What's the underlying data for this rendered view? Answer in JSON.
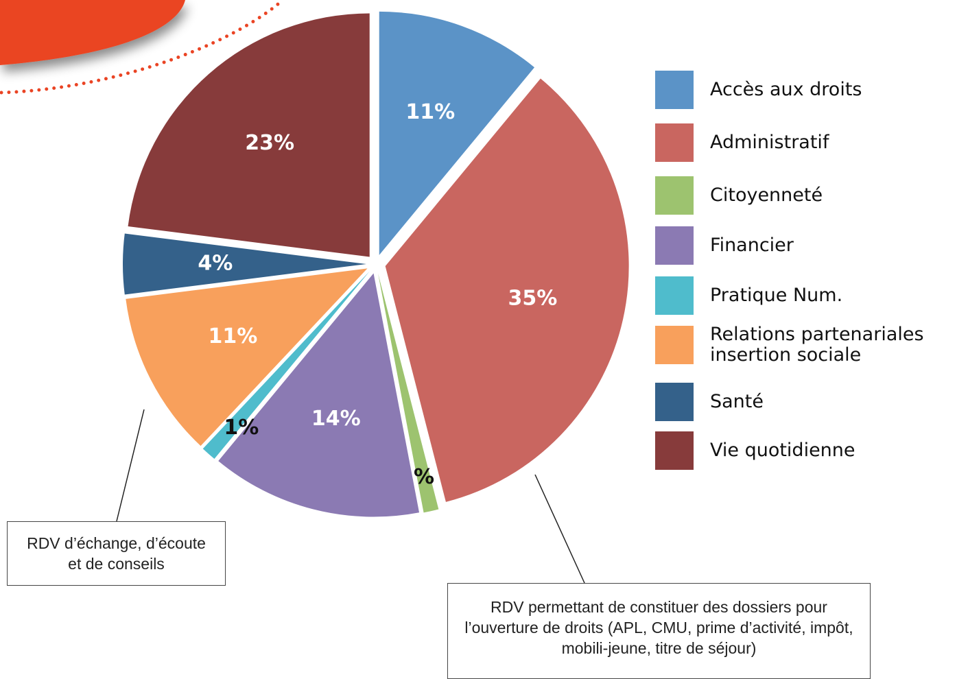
{
  "chart_data": {
    "type": "pie",
    "categories": [
      "Accès aux droits",
      "Administratif",
      "Citoyenneté",
      "Financier",
      "Pratique Num.",
      "Relations partenariales insertion sociale",
      "Santé",
      "Vie quotidienne"
    ],
    "values": [
      11,
      35,
      1,
      14,
      1,
      11,
      4,
      23
    ],
    "value_labels": [
      "11%",
      "35%",
      "1%",
      "14%",
      "1%",
      "11%",
      "4%",
      "23%"
    ],
    "colors": [
      "#5b93c7",
      "#c96660",
      "#9dc36f",
      "#8b7ab3",
      "#4fbccc",
      "#f8a05c",
      "#34618a",
      "#873b3b"
    ],
    "annotations": [
      "RDV d’échange, d’écoute et de conseils",
      "RDV permettant de constituer des dossiers pour l’ouverture de droits (APL, CMU, prime d’activité, impôt, mobili-jeune, titre de séjour)"
    ]
  }
}
